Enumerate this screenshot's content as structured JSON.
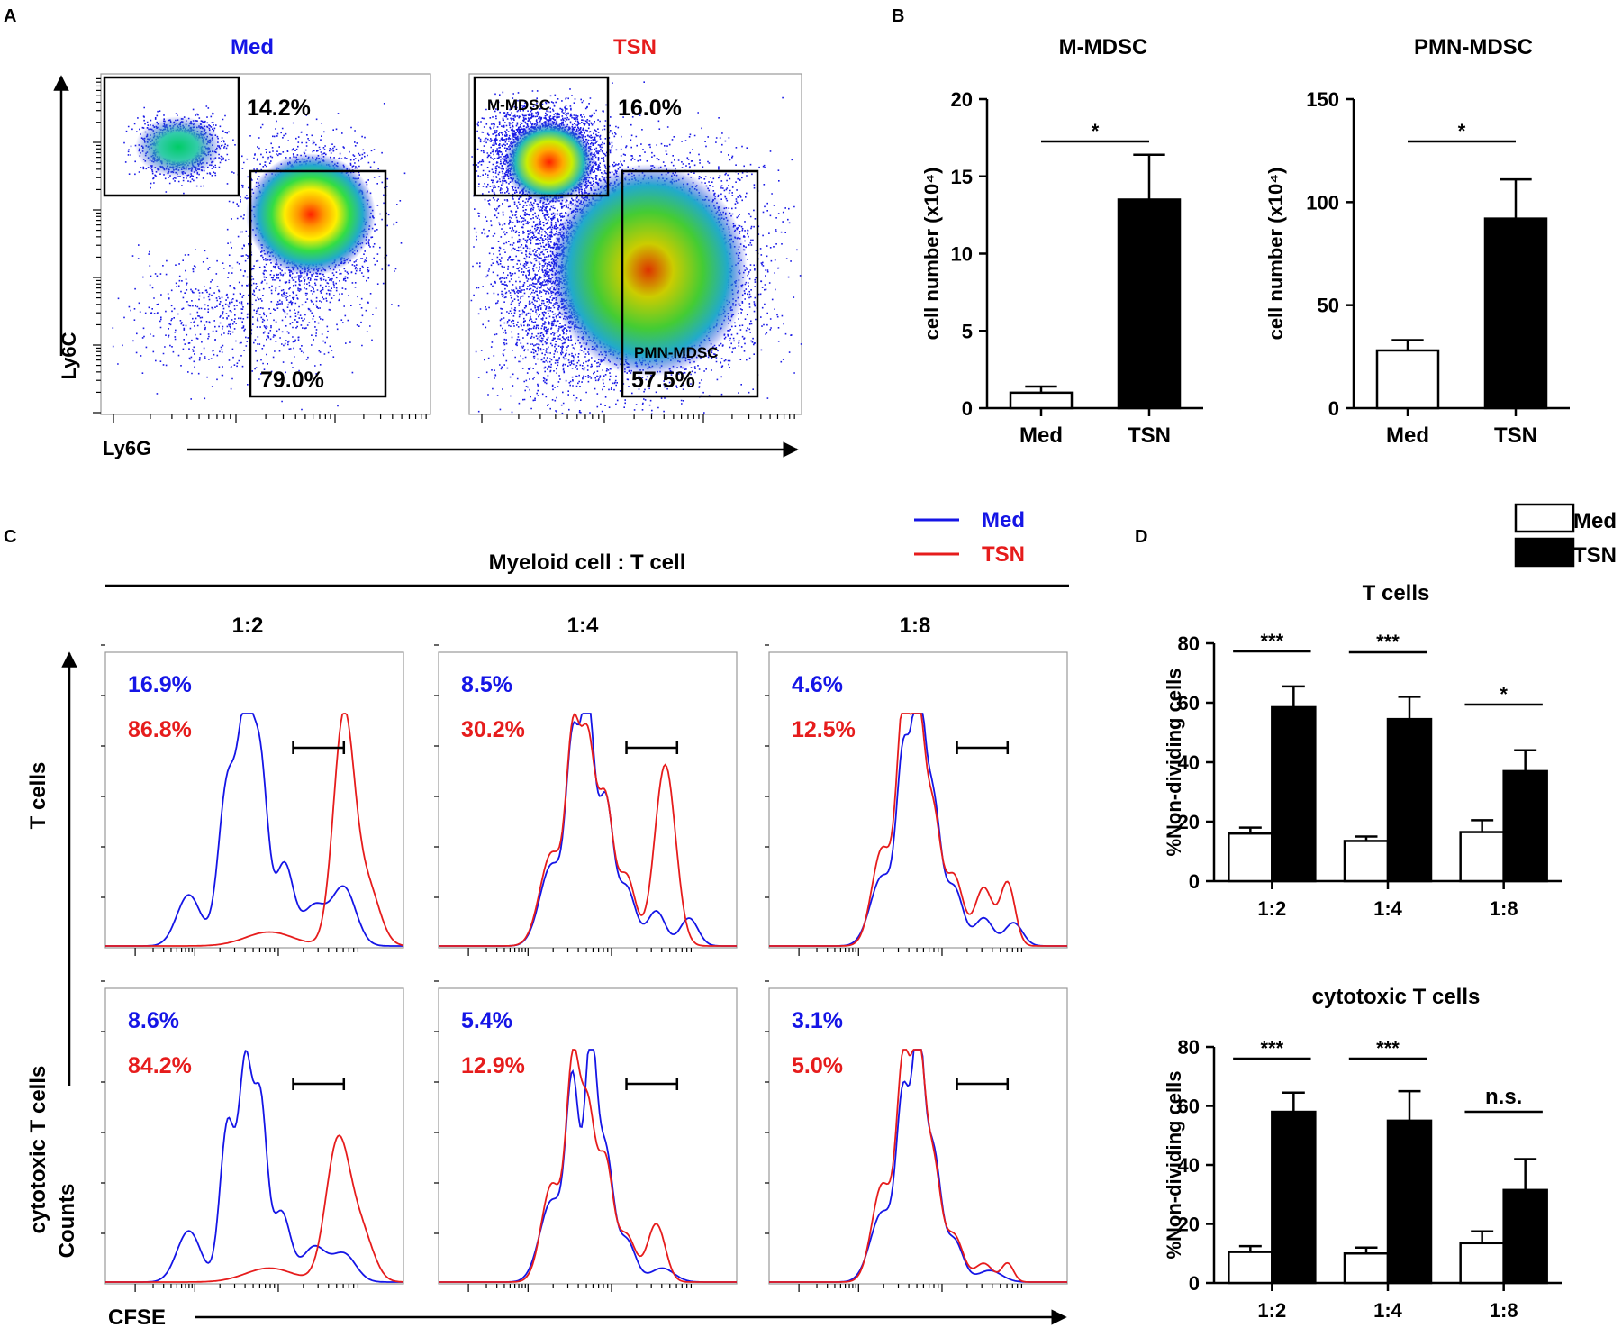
{
  "colors": {
    "med": "#1515e6",
    "tsn": "#e61c1c",
    "black": "#000000",
    "white": "#ffffff"
  },
  "panel_labels": {
    "a": "A",
    "b": "B",
    "c": "C",
    "d": "D"
  },
  "panel_a": {
    "med_title": "Med",
    "tsn_title": "TSN",
    "y_axis_label": "Ly6C",
    "x_axis_label": "Ly6G",
    "med_m_pct": "14.2%",
    "med_pmn_pct": "79.0%",
    "tsn_m_pct": "16.0%",
    "tsn_pmn_pct": "57.5%",
    "gate_m_label": "M-MDSC",
    "gate_pmn_label": "PMN-MDSC"
  },
  "panel_c": {
    "header": "Myeloid cell : T cell",
    "legend_med": "Med",
    "legend_tsn": "TSN",
    "ratios": [
      "1:2",
      "1:4",
      "1:8"
    ],
    "row_labels": [
      "T cells",
      "cytotoxic T cells"
    ],
    "counts_label": "Counts",
    "x_axis_label": "CFSE",
    "pct_med": [
      [
        "16.9%",
        "8.5%",
        "4.6%"
      ],
      [
        "8.6%",
        "5.4%",
        "3.1%"
      ]
    ],
    "pct_tsn": [
      [
        "86.8%",
        "30.2%",
        "12.5%"
      ],
      [
        "84.2%",
        "12.9%",
        "5.0%"
      ]
    ]
  },
  "panel_d_legend": {
    "med": "Med",
    "tsn": "TSN"
  },
  "chart_data": [
    {
      "type": "bar",
      "title": "M-MDSC",
      "categories": [
        "Med",
        "TSN"
      ],
      "values": [
        1.0,
        13.5
      ],
      "errors": [
        0.4,
        2.9
      ],
      "ylabel": "cell number (x10⁴)",
      "ylim": [
        0,
        20
      ],
      "yticks": [
        0,
        5,
        10,
        15,
        20
      ],
      "significance": "*"
    },
    {
      "type": "bar",
      "title": "PMN-MDSC",
      "categories": [
        "Med",
        "TSN"
      ],
      "values": [
        28,
        92
      ],
      "errors": [
        5,
        19
      ],
      "ylabel": "cell number (x10⁴)",
      "ylim": [
        0,
        150
      ],
      "yticks": [
        0,
        50,
        100,
        150
      ],
      "significance": "*"
    },
    {
      "type": "bar",
      "title": "T cells",
      "categories": [
        "1:2",
        "1:4",
        "1:8"
      ],
      "series": [
        {
          "name": "Med",
          "values": [
            16,
            13.5,
            16.5
          ],
          "errors": [
            2,
            1.5,
            4
          ]
        },
        {
          "name": "TSN",
          "values": [
            58.5,
            54.5,
            37
          ],
          "errors": [
            7,
            7.5,
            7
          ]
        }
      ],
      "ylabel": "%Non-dividing cells",
      "ylim": [
        0,
        80
      ],
      "yticks": [
        0,
        20,
        40,
        60,
        80
      ],
      "significance": [
        "***",
        "***",
        "*"
      ]
    },
    {
      "type": "bar",
      "title": "cytotoxic T cells",
      "categories": [
        "1:2",
        "1:4",
        "1:8"
      ],
      "series": [
        {
          "name": "Med",
          "values": [
            10.5,
            10,
            13.5
          ],
          "errors": [
            2,
            2,
            4
          ]
        },
        {
          "name": "TSN",
          "values": [
            58,
            55,
            31.5
          ],
          "errors": [
            6.5,
            10,
            10.5
          ]
        }
      ],
      "ylabel": "%Non-dividing cells",
      "ylim": [
        0,
        80
      ],
      "yticks": [
        0,
        20,
        40,
        60,
        80
      ],
      "significance": [
        "***",
        "***",
        "n.s."
      ]
    }
  ]
}
